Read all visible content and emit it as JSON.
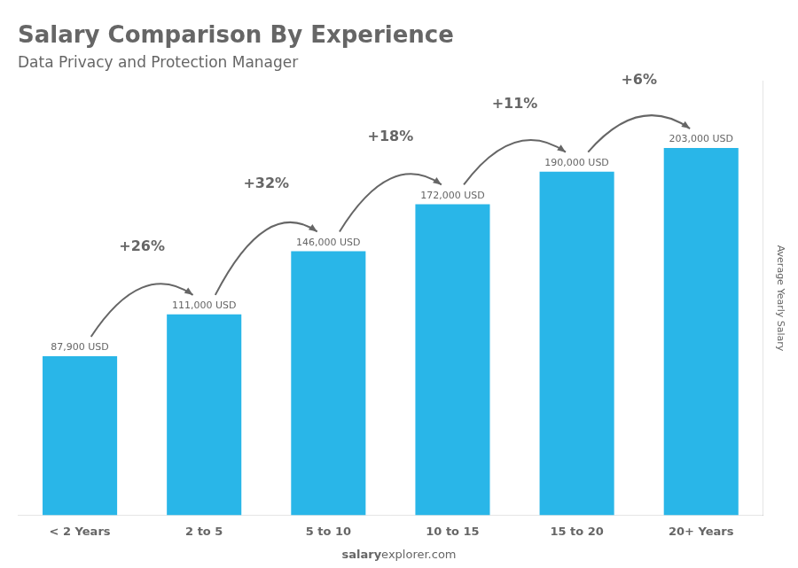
{
  "chart_data": {
    "type": "bar",
    "title": "Salary Comparison By Experience",
    "subtitle": "Data Privacy and Protection Manager",
    "ylabel": "Average Yearly Salary",
    "categories": [
      "< 2 Years",
      "2 to 5",
      "5 to 10",
      "10 to 15",
      "15 to 20",
      "20+ Years"
    ],
    "values": [
      87900,
      111000,
      146000,
      172000,
      190000,
      203000
    ],
    "value_labels": [
      "87,900 USD",
      "111,000 USD",
      "146,000 USD",
      "172,000 USD",
      "190,000 USD",
      "203,000 USD"
    ],
    "data_labels": true,
    "color": "#29b6e8",
    "ylim": [
      0,
      240000
    ],
    "grid": false,
    "tick_labels": "x",
    "annotations": [
      "+26%",
      "+32%",
      "+18%",
      "+11%",
      "+6%"
    ],
    "watermark": [
      "salary",
      "explorer.com"
    ]
  }
}
